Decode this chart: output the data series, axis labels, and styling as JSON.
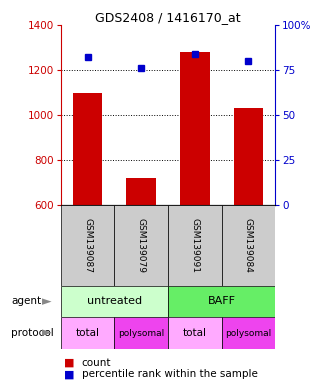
{
  "title": "GDS2408 / 1416170_at",
  "samples": [
    "GSM139087",
    "GSM139079",
    "GSM139091",
    "GSM139084"
  ],
  "counts": [
    1100,
    720,
    1280,
    1030
  ],
  "percentiles": [
    82,
    76,
    84,
    80
  ],
  "ylim_left": [
    600,
    1400
  ],
  "ylim_right": [
    0,
    100
  ],
  "left_ticks": [
    600,
    800,
    1000,
    1200,
    1400
  ],
  "right_ticks": [
    0,
    25,
    50,
    75,
    100
  ],
  "right_tick_labels": [
    "0",
    "25",
    "50",
    "75",
    "100%"
  ],
  "bar_color": "#cc0000",
  "dot_color": "#0000cc",
  "agent_labels": [
    "untreated",
    "BAFF"
  ],
  "agent_colors": [
    "#ccffcc",
    "#66ee66"
  ],
  "protocol_labels": [
    "total",
    "polysomal",
    "total",
    "polysomal"
  ],
  "sample_bg_color": "#cccccc",
  "left_tick_color": "#cc0000",
  "right_tick_color": "#0000cc",
  "legend_count_color": "#cc0000",
  "legend_pct_color": "#0000cc",
  "total_color": "#ffaaff",
  "polysomal_color": "#ee44ee"
}
